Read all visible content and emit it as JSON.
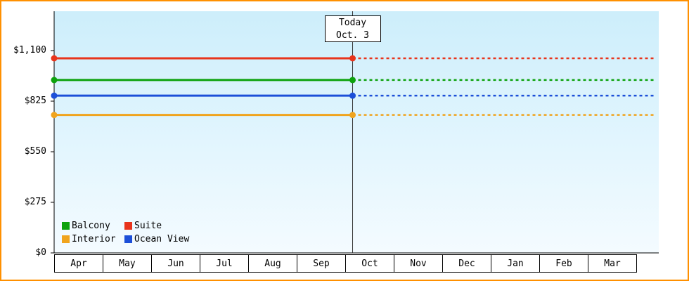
{
  "frame": {
    "border_color": "#ff9000",
    "plot_bg_top": "#cdeefb",
    "plot_bg_bottom": "#f4fbff"
  },
  "chart_data": {
    "type": "line",
    "title": "",
    "x_categories": [
      "Apr",
      "May",
      "Jun",
      "Jul",
      "Aug",
      "Sep",
      "Oct",
      "Nov",
      "Dec",
      "Jan",
      "Feb",
      "Mar"
    ],
    "y_tick_values": [
      0,
      275,
      550,
      825,
      1100
    ],
    "y_tick_labels": [
      "$0",
      "$275",
      "$550",
      "$825",
      "$1,100"
    ],
    "ylim": [
      0,
      1315
    ],
    "grid": "off",
    "today": {
      "line1": "Today",
      "line2": "Oct. 3",
      "month_index": 6,
      "day": 3
    },
    "forecast_style": "dashed_after_today",
    "series": [
      {
        "name": "Suite",
        "color": "#e8341c",
        "value": 1058
      },
      {
        "name": "Balcony",
        "color": "#0da20d",
        "value": 940
      },
      {
        "name": "Ocean View",
        "color": "#1c4fd8",
        "value": 855
      },
      {
        "name": "Interior",
        "color": "#f0a41e",
        "value": 750
      }
    ],
    "legend_rows": [
      [
        "Balcony",
        "Suite"
      ],
      [
        "Interior",
        "Ocean View"
      ]
    ],
    "legend_position": "bottom-left"
  }
}
